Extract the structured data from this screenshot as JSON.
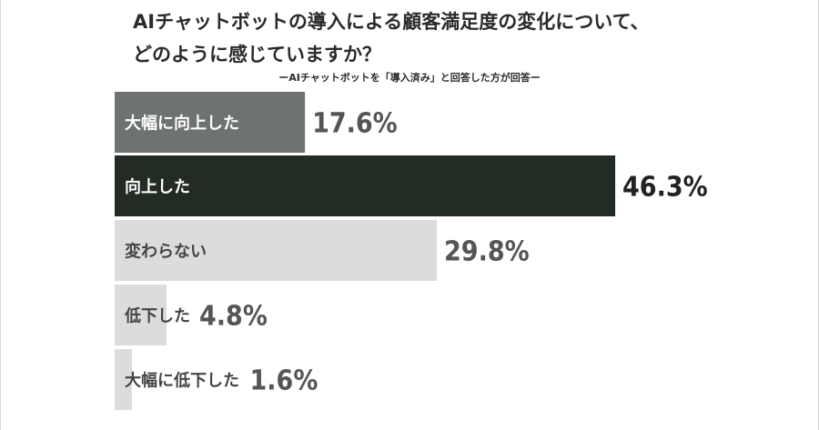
{
  "title_lines": [
    "AIチャットボットの導入による顧客満足度の変化について、",
    "どのように感じていますか？"
  ],
  "subtitle": "ーAIチャットボットを「導入済み」と回答した方が回答ー",
  "chart_data": {
    "type": "bar",
    "orientation": "horizontal",
    "title": "AIチャットボットの導入による顧客満足度の変化について、どのように感じていますか？",
    "subtitle": "ーAIチャットボットを「導入済み」と回答した方が回答ー",
    "categories": [
      "大幅に向上した",
      "向上した",
      "変わらない",
      "低下した",
      "大幅に低下した"
    ],
    "values": [
      17.6,
      46.3,
      29.8,
      4.8,
      1.6
    ],
    "value_labels": [
      "17.6%",
      "46.3%",
      "29.8%",
      "4.8%",
      "1.6%"
    ],
    "unit": "%",
    "colors": [
      "#6e736f",
      "#232b25",
      "#dcdcdc",
      "#dcdcdc",
      "#dcdcdc"
    ],
    "label_colors": [
      "#ffffff",
      "#ffffff",
      "#444444",
      "#444444",
      "#444444"
    ],
    "value_colors": [
      "#555555",
      "#222222",
      "#555555",
      "#555555",
      "#555555"
    ],
    "xlim": [
      0,
      100
    ],
    "grid": false,
    "legend": "none"
  }
}
